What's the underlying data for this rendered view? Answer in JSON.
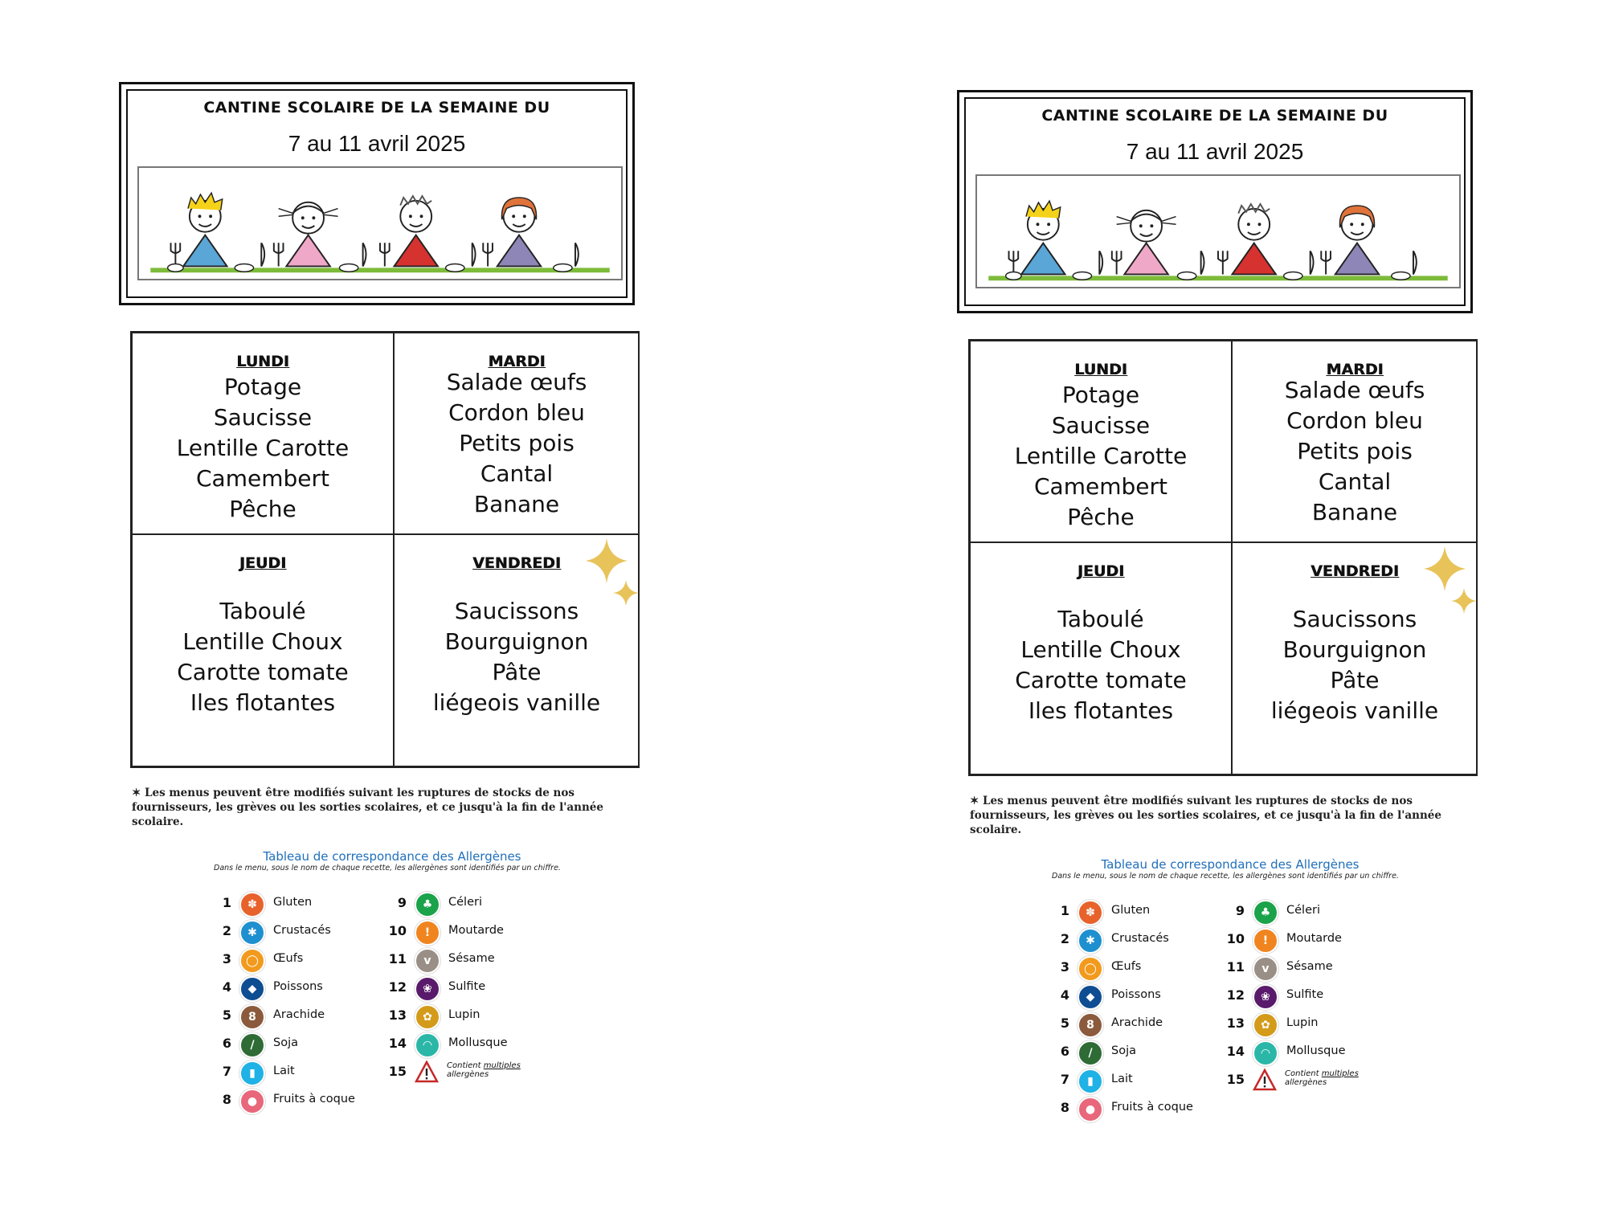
{
  "header": {
    "title": "CANTINE SCOLAIRE DE LA SEMAINE DU",
    "dates": "7 au 11 avril 2025"
  },
  "menu": {
    "lundi": {
      "day": "LUNDI",
      "dishes": [
        "Potage",
        "Saucisse",
        "Lentille Carotte",
        "Camembert",
        "Pêche"
      ]
    },
    "mardi": {
      "day": "MARDI",
      "dishes": [
        "Salade œufs",
        "Cordon bleu",
        "Petits pois",
        "Cantal",
        "Banane"
      ]
    },
    "jeudi": {
      "day": "JEUDI",
      "dishes": [
        "Taboulé",
        "Lentille Choux",
        "Carotte tomate",
        "Iles flotantes"
      ]
    },
    "vendredi": {
      "day": "VENDREDI",
      "dishes": [
        "Saucissons",
        "Bourguignon",
        "Pâte",
        "liégeois vanille"
      ]
    }
  },
  "note": "✶ Les menus peuvent être modifiés suivant les ruptures de stocks de nos fournisseurs, les grèves ou les sorties scolaires, et ce jusqu'à la fin de l'année scolaire.",
  "allergens": {
    "title": "Tableau de correspondance des Allergènes",
    "subtitle": "Dans le menu, sous le nom de chaque recette, les allergènes sont identifiés par un chiffre.",
    "left": [
      {
        "num": "1",
        "label": "Gluten",
        "color": "#e8622c",
        "icon": "wheat-icon",
        "glyph": "✽"
      },
      {
        "num": "2",
        "label": "Crustacés",
        "color": "#1e90d0",
        "icon": "crab-icon",
        "glyph": "✱"
      },
      {
        "num": "3",
        "label": "Œufs",
        "color": "#f29a1d",
        "icon": "egg-icon",
        "glyph": "◯"
      },
      {
        "num": "4",
        "label": "Poissons",
        "color": "#0e4d92",
        "icon": "fish-icon",
        "glyph": "◆"
      },
      {
        "num": "5",
        "label": "Arachide",
        "color": "#8b5a3c",
        "icon": "peanut-icon",
        "glyph": "8"
      },
      {
        "num": "6",
        "label": "Soja",
        "color": "#2e6b35",
        "icon": "soy-icon",
        "glyph": "/"
      },
      {
        "num": "7",
        "label": "Lait",
        "color": "#1fb2e6",
        "icon": "milk-icon",
        "glyph": "▮"
      },
      {
        "num": "8",
        "label": "Fruits à coque",
        "color": "#e8677a",
        "icon": "nut-icon",
        "glyph": "●"
      }
    ],
    "right": [
      {
        "num": "9",
        "label": "Céleri",
        "color": "#1aa34a",
        "icon": "celery-icon",
        "glyph": "♣"
      },
      {
        "num": "10",
        "label": "Moutarde",
        "color": "#f0851f",
        "icon": "mustard-icon",
        "glyph": "!"
      },
      {
        "num": "11",
        "label": "Sésame",
        "color": "#9a8f86",
        "icon": "sesame-icon",
        "glyph": "v"
      },
      {
        "num": "12",
        "label": "Sulfite",
        "color": "#5a1a6b",
        "icon": "sulfite-icon",
        "glyph": "❀"
      },
      {
        "num": "13",
        "label": "Lupin",
        "color": "#d49a1a",
        "icon": "lupin-icon",
        "glyph": "✿"
      },
      {
        "num": "14",
        "label": "Mollusque",
        "color": "#2bb7a8",
        "icon": "shell-icon",
        "glyph": "◠"
      }
    ],
    "multi": {
      "num": "15",
      "pre": "Contient ",
      "underlined": "multiples",
      "post": " allergènes"
    }
  }
}
